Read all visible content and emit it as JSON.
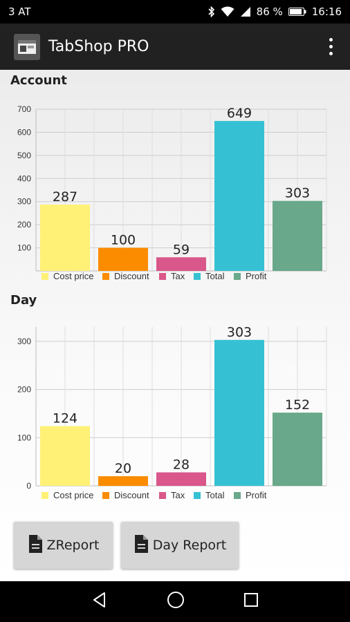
{
  "status_bar": {
    "carrier": "3 AT",
    "battery": "86 %",
    "time": "16:16"
  },
  "app_bar": {
    "title": "TabShop PRO"
  },
  "colors": {
    "cost_price": "#fff176",
    "discount": "#fb8c00",
    "tax": "#d9578a",
    "total": "#35c1d3",
    "profit": "#69a88a"
  },
  "sections": {
    "account_title": "Account",
    "day_title": "Day"
  },
  "chart_data": [
    {
      "type": "bar",
      "title": "Account",
      "categories": [
        "Cost price",
        "Discount",
        "Tax",
        "Total",
        "Profit"
      ],
      "values": [
        287,
        100,
        59,
        649,
        303
      ],
      "ylim": [
        0,
        700
      ],
      "yticks": [
        100,
        200,
        300,
        400,
        500,
        600,
        700
      ],
      "legend_position": "bottom",
      "grid": true
    },
    {
      "type": "bar",
      "title": "Day",
      "categories": [
        "Cost price",
        "Discount",
        "Tax",
        "Total",
        "Profit"
      ],
      "values": [
        124,
        20,
        28,
        303,
        152
      ],
      "ylim": [
        0,
        330
      ],
      "yticks": [
        0,
        100,
        200,
        300
      ],
      "legend_position": "bottom",
      "grid": true
    }
  ],
  "buttons": {
    "zreport": "ZReport",
    "day_report": "Day Report"
  },
  "icons": {
    "status": [
      "bluetooth-icon",
      "wifi-icon",
      "signal-icon",
      "battery-icon"
    ],
    "buttons": [
      "document-icon"
    ],
    "nav": [
      "back-icon",
      "home-icon",
      "recents-icon"
    ]
  }
}
